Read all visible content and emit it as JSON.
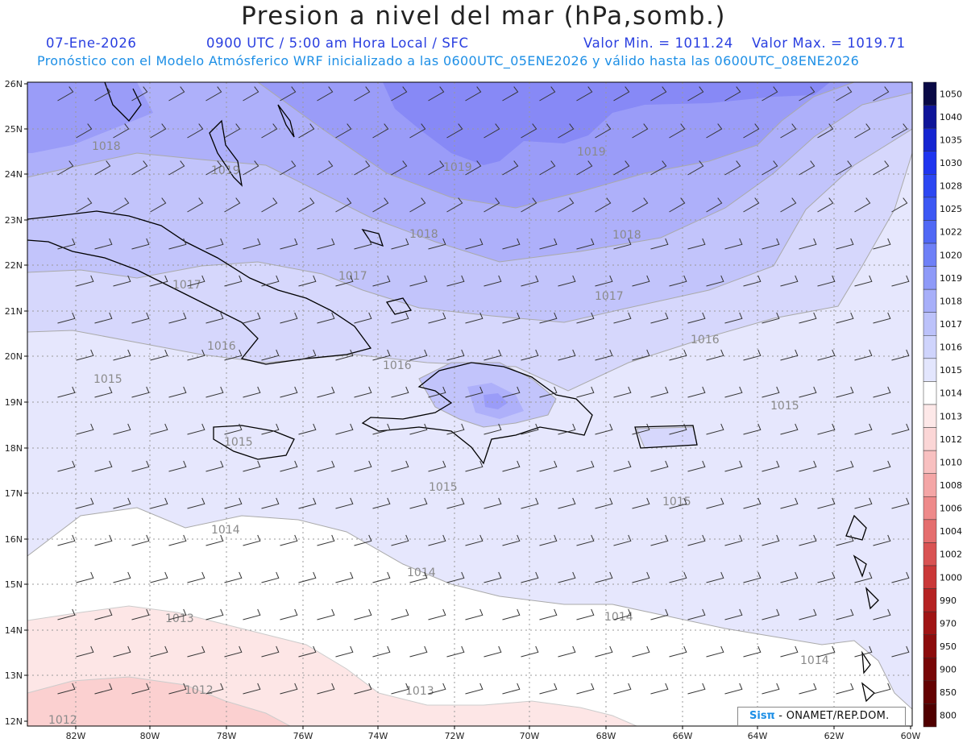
{
  "header": {
    "title": "Presion a nivel del mar (hPa,somb.)",
    "date": "07-Ene-2026",
    "time": "0900 UTC / 5:00 am Hora Local / SFC",
    "vmin_label": "Valor Min. = 1011.24",
    "vmax_label": "Valor Max. = 1019.71",
    "model_line": "Pronóstico con el Modelo Atmósferico WRF inicializado a las 0600UTC_05ENE2026 y válido hasta las  0600UTC_08ENE2026"
  },
  "map": {
    "lat_labels": [
      "26N",
      "25N",
      "24N",
      "23N",
      "22N",
      "21N",
      "20N",
      "19N",
      "18N",
      "17N",
      "16N",
      "15N",
      "14N",
      "13N",
      "12N"
    ],
    "lon_labels": [
      "82W",
      "80W",
      "78W",
      "76W",
      "74W",
      "72W",
      "70W",
      "68W",
      "66W",
      "64W",
      "62W",
      "60W"
    ],
    "contour_labels": [
      "1018",
      "1019",
      "1019",
      "1019",
      "1018",
      "1018",
      "1017",
      "1017",
      "1017",
      "1016",
      "1016",
      "1016",
      "1015",
      "1015",
      "1015",
      "1015",
      "1015",
      "1014",
      "1014",
      "1014",
      "1014",
      "1013",
      "1013",
      "1012",
      "1012"
    ],
    "colors": {
      "1019": "#9a9cf8",
      "1018": "#aeb0fa",
      "1017": "#c2c4fb",
      "1016": "#d6d7fc",
      "1015": "#e6e7fd",
      "1014": "#ffffff",
      "1013": "#fde6e6",
      "1012": "#fbd0d0"
    }
  },
  "colorbar": {
    "levels": [
      "1050",
      "1040",
      "1035",
      "1030",
      "1028",
      "1025",
      "1022",
      "1020",
      "1019",
      "1018",
      "1017",
      "1016",
      "1015",
      "1014",
      "1013",
      "1012",
      "1010",
      "1008",
      "1006",
      "1004",
      "1002",
      "1000",
      "990",
      "970",
      "950",
      "900",
      "850",
      "800"
    ],
    "colors": [
      "#0a0a46",
      "#0f1599",
      "#1525d2",
      "#1f35ef",
      "#2c47f2",
      "#3c58f4",
      "#5068f5",
      "#6e80f7",
      "#8e9af8",
      "#a7aff9",
      "#bcc2fa",
      "#cfd4fc",
      "#e3e6fd",
      "#ffffff",
      "#fde8e8",
      "#fbd6d6",
      "#f8c0c0",
      "#f4a6a6",
      "#ee8a8a",
      "#e56e6e",
      "#d95353",
      "#ca3838",
      "#b52222",
      "#a01414",
      "#8c0c0c",
      "#780606",
      "#640202",
      "#500000"
    ]
  },
  "credit": {
    "brand": "Sisπ",
    "org": " - ONAMET/REP.DOM."
  }
}
